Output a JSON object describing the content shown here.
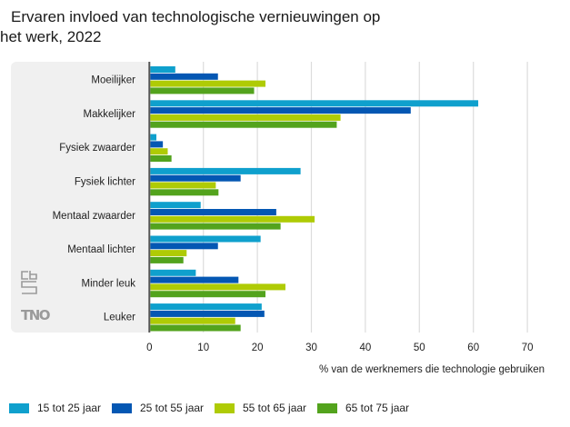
{
  "title": {
    "line1": "Ervaren invloed van technologische vernieuwingen op",
    "line2": "het werk, 2022"
  },
  "logos": {
    "cbs": "cbs",
    "tno": "TNO"
  },
  "chart_data": {
    "type": "bar",
    "orientation": "horizontal",
    "title": "Ervaren invloed van technologische vernieuwingen op het werk, 2022",
    "xlabel": "% van de werknemers die technologie gebruiken",
    "ylabel": "",
    "xlim": [
      0,
      70
    ],
    "xticks": [
      0,
      10,
      20,
      30,
      40,
      50,
      60,
      70
    ],
    "grid": true,
    "legend_position": "bottom",
    "categories": [
      "Moeilijker",
      "Makkelijker",
      "Fysiek zwaarder",
      "Fysiek lichter",
      "Mentaal zwaarder",
      "Mentaal lichter",
      "Minder leuk",
      "Leuker"
    ],
    "series": [
      {
        "name": "15 tot 25 jaar",
        "color": "#0fa0cd",
        "values": [
          4.8,
          60.9,
          1.3,
          28.0,
          9.5,
          20.6,
          8.6,
          20.8
        ]
      },
      {
        "name": "25 tot 55 jaar",
        "color": "#0457b3",
        "values": [
          12.7,
          48.4,
          2.5,
          16.9,
          23.5,
          12.7,
          16.5,
          21.3
        ]
      },
      {
        "name": "55 tot 65 jaar",
        "color": "#afcb05",
        "values": [
          21.5,
          35.4,
          3.4,
          12.3,
          30.6,
          6.9,
          25.2,
          15.9
        ]
      },
      {
        "name": "65 tot 75 jaar",
        "color": "#53a31d",
        "values": [
          19.4,
          34.7,
          4.1,
          12.8,
          24.3,
          6.3,
          21.5,
          16.9
        ]
      }
    ]
  }
}
